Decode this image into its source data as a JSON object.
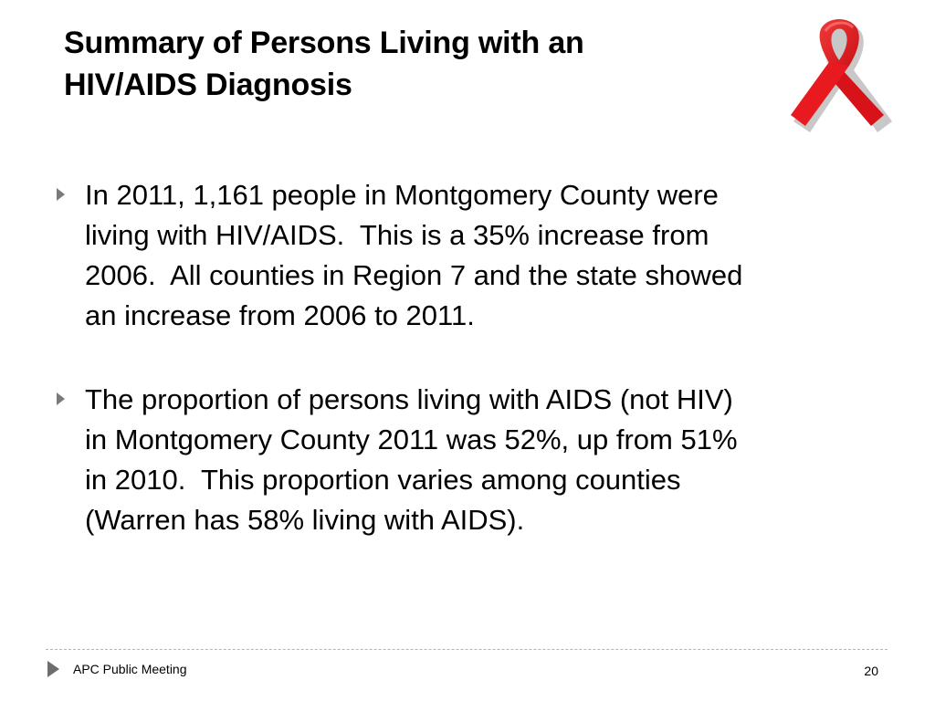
{
  "slide": {
    "title_lines": [
      "Summary of Persons Living with an",
      "HIV/AIDS Diagnosis"
    ],
    "bullets": [
      {
        "lines": [
          "In 2011, 1,161 people in Montgomery County were",
          "living with HIV/AIDS.  This is a 35% increase from",
          "2006.  All counties in Region 7 and the state showed",
          "an increase from 2006 to 2011."
        ]
      },
      {
        "lines": [
          "The proportion of persons living with AIDS (not HIV)",
          "in Montgomery County 2011 was 52%, up from 51%",
          "in 2010.  This proportion varies among counties",
          "(Warren has 58% living with AIDS)."
        ]
      }
    ],
    "icon": "red-ribbon-icon",
    "ribbon_color": "#e8191f"
  },
  "footer": {
    "text": "APC Public Meeting",
    "page_number": "20"
  }
}
